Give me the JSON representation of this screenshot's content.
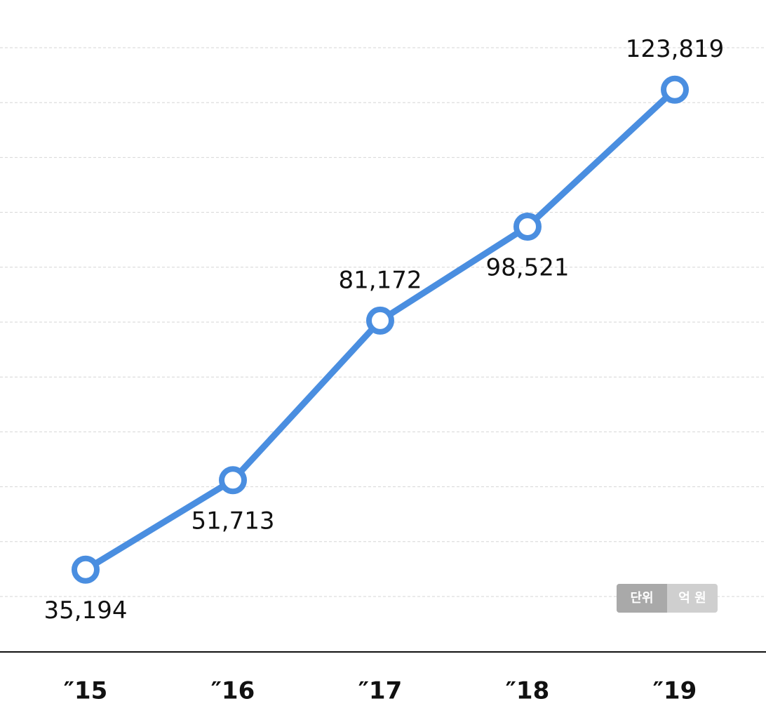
{
  "chart_data": {
    "type": "line",
    "categories": [
      "″15",
      "″16",
      "″17",
      "″18",
      "″19"
    ],
    "series": [
      {
        "color": "#4a8ee0",
        "values": [
          35194,
          51713,
          81172,
          98521,
          123819
        ],
        "value_labels": [
          "35,194",
          "51,713",
          "81,172",
          "98,521",
          "123,819"
        ]
      }
    ],
    "ylim": [
      20000,
      130000
    ],
    "grid": true,
    "unit_badge": {
      "label": "단위",
      "unit": "억 원"
    }
  }
}
